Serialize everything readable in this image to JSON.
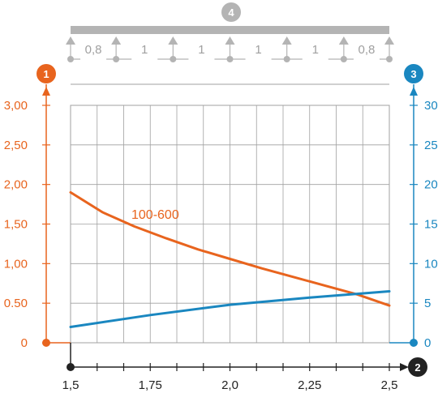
{
  "chart_data": {
    "type": "line",
    "x_ticks": [
      "1,5",
      "1,75",
      "2,0",
      "2,25",
      "2,5"
    ],
    "x_tick_values": [
      1.5,
      1.75,
      2.0,
      2.25,
      2.5
    ],
    "xlim": [
      1.5,
      2.5
    ],
    "y_left_ticks": [
      "0",
      "0.50",
      "1,00",
      "1,50",
      "2,00",
      "2,50",
      "3,00"
    ],
    "y_left_tick_values": [
      0,
      0.5,
      1.0,
      1.5,
      2.0,
      2.5,
      3.0
    ],
    "y_left_lim": [
      0,
      3.0
    ],
    "y_right_ticks": [
      "0",
      "5",
      "10",
      "15",
      "20",
      "25",
      "30"
    ],
    "y_right_tick_values": [
      0,
      5,
      10,
      15,
      20,
      25,
      30
    ],
    "y_right_lim": [
      0,
      30
    ],
    "grid": true,
    "series": [
      {
        "name": "100-600",
        "axis": "left",
        "color": "#e8641e",
        "x": [
          1.5,
          1.6,
          1.7,
          1.8,
          1.9,
          2.0,
          2.1,
          2.2,
          2.3,
          2.4,
          2.5
        ],
        "y": [
          1.9,
          1.65,
          1.47,
          1.32,
          1.18,
          1.06,
          0.94,
          0.83,
          0.72,
          0.61,
          0.47
        ]
      },
      {
        "axis": "right",
        "color": "#1a87c0",
        "x": [
          1.5,
          1.75,
          2.0,
          2.25,
          2.5
        ],
        "y": [
          2.0,
          3.5,
          4.8,
          5.7,
          6.5
        ]
      }
    ],
    "markers": {
      "left_axis": "1",
      "right_axis": "3",
      "x_axis": "2",
      "support": "4"
    },
    "support_spans": [
      "0,8",
      "1",
      "1",
      "1",
      "1",
      "0,8"
    ],
    "colors": {
      "left_axis": "#e8641e",
      "right_axis": "#1a87c0",
      "x_axis": "#222222",
      "grid": "#a0a0a0",
      "support": "#b4b4b4"
    }
  }
}
